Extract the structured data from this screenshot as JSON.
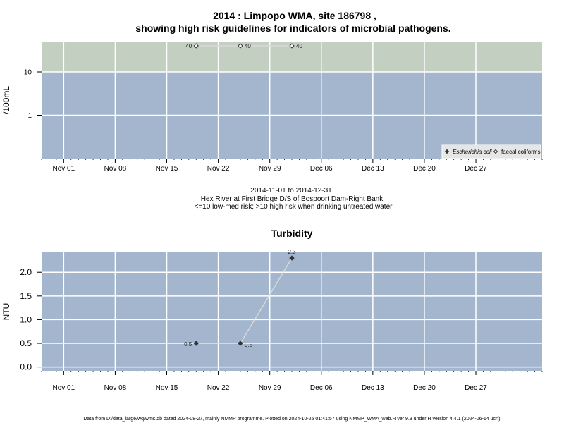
{
  "page": {
    "title_line1": "2014 : Limpopo WMA, site 186798 ,",
    "title_line2": "showing high risk guidelines for indicators of microbial pathogens.",
    "footer": "Data from D:/data_large/wq/wms.db dated 2024-08-27, mainly NMMP programme. Plotted on 2024-10-25 01:41:57 using NMMP_WMA_web.R ver 9.3 under R version 4.4.1 (2024-06-14 ucrt)"
  },
  "colors": {
    "high_risk_band": "#c3cfc0",
    "low_risk_band": "#a3b6cd",
    "grid": "#ffffff",
    "point": "#333333",
    "line": "#d9d9d9"
  },
  "chart_data": [
    {
      "type": "scatter",
      "scale": "log",
      "ylabel": "/100mL",
      "y_tick_labels": [
        "1",
        "10"
      ],
      "ylim": [
        0.1,
        50
      ],
      "threshold": 10,
      "x_tick_labels": [
        "Nov 01",
        "Nov 08",
        "Nov 15",
        "Nov 22",
        "Nov 29",
        "Dec 06",
        "Dec 13",
        "Dec 20",
        "Dec 27"
      ],
      "x_tick_dates": [
        "2014-11-01",
        "2014-11-08",
        "2014-11-15",
        "2014-11-22",
        "2014-11-29",
        "2014-12-06",
        "2014-12-13",
        "2014-12-20",
        "2014-12-27"
      ],
      "xlim": [
        "2014-10-29",
        "2015-01-05"
      ],
      "series": [
        {
          "name": "faecal coliforms",
          "marker": "open-diamond",
          "points": [
            {
              "x": "2014-11-19",
              "y": 40,
              "label": "40"
            },
            {
              "x": "2014-11-25",
              "y": 40,
              "label": "40"
            },
            {
              "x": "2014-12-02",
              "y": 40,
              "label": "40"
            }
          ]
        }
      ],
      "legend": {
        "placement": "bottom-right",
        "entries": [
          {
            "name": "Escherichia coli",
            "marker": "filled-diamond"
          },
          {
            "name": "faecal coliforms",
            "marker": "open-diamond"
          }
        ]
      },
      "caption_lines": [
        "2014-11-01 to 2014-12-31",
        "Hex River at First Bridge D/S of Bospoort Dam-Right Bank",
        "<=10 low-med risk; >10 high risk when drinking untreated water"
      ]
    },
    {
      "type": "line",
      "title": "Turbidity",
      "ylabel": "NTU",
      "y_tick_labels": [
        "0.0",
        "0.5",
        "1.0",
        "1.5",
        "2.0"
      ],
      "ylim": [
        -0.08,
        2.42
      ],
      "x_tick_labels": [
        "Nov 01",
        "Nov 08",
        "Nov 15",
        "Nov 22",
        "Nov 29",
        "Dec 06",
        "Dec 13",
        "Dec 20",
        "Dec 27"
      ],
      "x_tick_dates": [
        "2014-11-01",
        "2014-11-08",
        "2014-11-15",
        "2014-11-22",
        "2014-11-29",
        "2014-12-06",
        "2014-12-13",
        "2014-12-20",
        "2014-12-27"
      ],
      "xlim": [
        "2014-10-29",
        "2015-01-05"
      ],
      "series": [
        {
          "points": [
            {
              "x": "2014-11-19",
              "y": 0.5,
              "label": "0.5"
            },
            {
              "x": "2014-11-25",
              "y": 0.5,
              "label": "0.5"
            },
            {
              "x": "2014-12-02",
              "y": 2.3,
              "label": "2.3"
            }
          ]
        }
      ]
    }
  ]
}
